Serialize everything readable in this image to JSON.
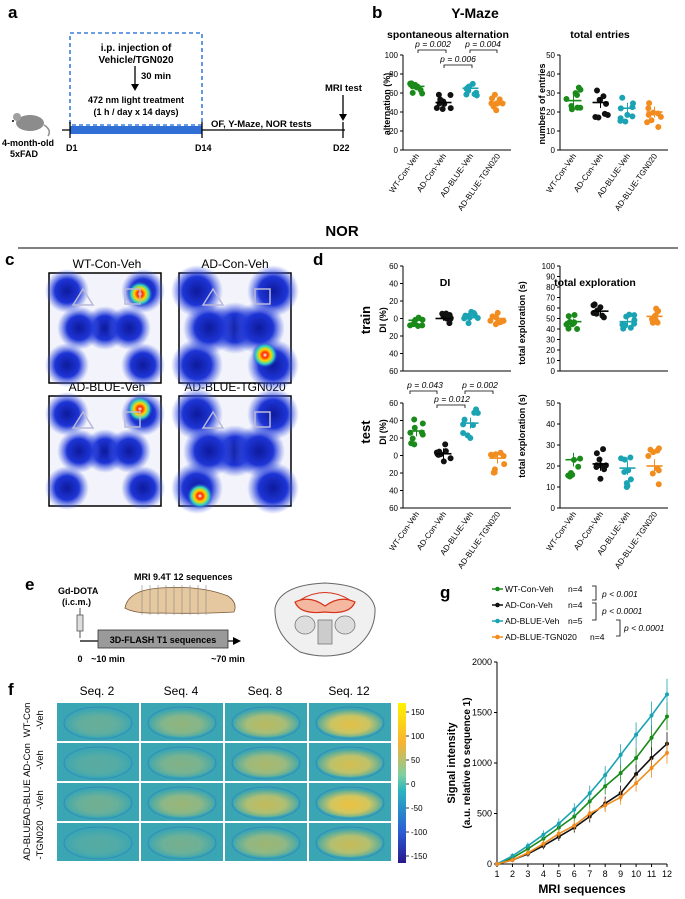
{
  "panel_labels": {
    "a": "a",
    "b": "b",
    "c": "c",
    "d": "d",
    "e": "e",
    "f": "f",
    "g": "g"
  },
  "colors": {
    "wt": "#1a8a1a",
    "ad": "#111111",
    "blue": "#1aa3b3",
    "tgn": "#f28c1e",
    "dash": "#3a7fd9",
    "bar": "#2f6fd6"
  },
  "panel_a": {
    "box_line1": "i.p. injection of",
    "box_line2": "Vehicle/TGN020",
    "wait": "30 min",
    "treat1": "472 nm light treatment",
    "treat2": "(1 h / day x 14 days)",
    "mri": "MRI test",
    "mouse1": "4-month-old",
    "mouse2": "5xFAD",
    "tests": "OF, Y-Maze, NOR tests",
    "d1": "D1",
    "d14": "D14",
    "d22": "D22"
  },
  "panel_b": {
    "title": "Y-Maze",
    "alt_title": "spontaneous alternation",
    "tot_title": "total entries",
    "alt_ylabel": "alternation (%)",
    "tot_ylabel": "numbers of entries",
    "p1": "p = 0.002",
    "p2": "p = 0.006",
    "p3": "p = 0.004"
  },
  "nor_title": "NOR",
  "panel_c": {
    "l1": "WT-Con-Veh",
    "l2": "AD-Con-Veh",
    "l3": "AD-BLUE-Veh",
    "l4": "AD-BLUE-TGN020"
  },
  "panel_d": {
    "di_title": "DI",
    "te_title": "total exploration",
    "train": "train",
    "test": "test",
    "di_ylabel": "DI (%)",
    "te_ylabel": "total exploration (s)",
    "p1": "p = 0.043",
    "p2": "p = 0.002",
    "p3": "p = 0.012"
  },
  "groups": [
    "WT-Con-Veh",
    "AD-Con-Veh",
    "AD-BLUE-Veh",
    "AD-BLUE-TGN020"
  ],
  "panel_e": {
    "agent1": "Gd-DOTA",
    "agent2": "(i.c.m.)",
    "mri": "MRI 9.4T  12 sequences",
    "seq": "3D-FLASH T1 sequences",
    "t0": "0",
    "t1": "~10 min",
    "t2": "~70 min"
  },
  "panel_f": {
    "cols": [
      "Seq. 2",
      "Seq. 4",
      "Seq. 8",
      "Seq. 12"
    ],
    "rows": [
      [
        "WT-Con",
        "-Veh"
      ],
      [
        "AD-Con",
        "-Veh"
      ],
      [
        "AD-BLUE",
        "-Veh"
      ],
      [
        "AD-BLUE",
        "-TGN020"
      ]
    ],
    "cbar": [
      "150",
      "100",
      "50",
      "0",
      "-50",
      "-100",
      "-150"
    ]
  },
  "panel_g": {
    "legend": [
      {
        "name": "WT-Con-Veh",
        "n": "n=4"
      },
      {
        "name": "AD-Con-Veh",
        "n": "n=4"
      },
      {
        "name": "AD-BLUE-Veh",
        "n": "n=5"
      },
      {
        "name": "AD-BLUE-TGN020",
        "n": "n=4"
      }
    ],
    "stats": [
      "p < 0.001",
      "p < 0.0001",
      "p < 0.0001"
    ]
  },
  "chart_data": [
    {
      "type": "scatter",
      "title": "spontaneous alternation",
      "ylabel": "alternation (%)",
      "ylim": [
        0,
        100
      ],
      "yticks": [
        0,
        20,
        40,
        60,
        80,
        100
      ],
      "categories": [
        "WT-Con-Veh",
        "AD-Con-Veh",
        "AD-BLUE-Veh",
        "AD-BLUE-TGN020"
      ],
      "means": [
        67,
        50,
        65,
        50
      ]
    },
    {
      "type": "scatter",
      "title": "total entries",
      "ylabel": "numbers of entries",
      "ylim": [
        0,
        50
      ],
      "yticks": [
        0,
        10,
        20,
        30,
        40,
        50
      ],
      "categories": [
        "WT-Con-Veh",
        "AD-Con-Veh",
        "AD-BLUE-Veh",
        "AD-BLUE-TGN020"
      ],
      "means": [
        26,
        25,
        22,
        20
      ]
    },
    {
      "type": "scatter",
      "title": "DI (train)",
      "ylabel": "DI (%)",
      "ylim": [
        -60,
        60
      ],
      "yticks": [
        60,
        40,
        20,
        0,
        20,
        40,
        60
      ],
      "categories": [
        "WT-Con-Veh",
        "AD-Con-Veh",
        "AD-BLUE-Veh",
        "AD-BLUE-TGN020"
      ],
      "means": [
        -2,
        0,
        1,
        0
      ]
    },
    {
      "type": "scatter",
      "title": "total exploration (train)",
      "ylabel": "total exploration (s)",
      "ylim": [
        0,
        100
      ],
      "yticks": [
        0,
        10,
        20,
        30,
        40,
        50,
        60,
        70,
        80,
        90,
        100
      ],
      "categories": [
        "WT-Con-Veh",
        "AD-Con-Veh",
        "AD-BLUE-Veh",
        "AD-BLUE-TGN020"
      ],
      "means": [
        47,
        57,
        47,
        52
      ]
    },
    {
      "type": "scatter",
      "title": "DI (test)",
      "ylabel": "DI (%)",
      "ylim": [
        -60,
        60
      ],
      "yticks": [
        60,
        40,
        20,
        0,
        20,
        40,
        60
      ],
      "categories": [
        "WT-Con-Veh",
        "AD-Con-Veh",
        "AD-BLUE-Veh",
        "AD-BLUE-TGN020"
      ],
      "means": [
        28,
        2,
        37,
        -3
      ]
    },
    {
      "type": "scatter",
      "title": "total exploration (test)",
      "ylabel": "total exploration (s)",
      "ylim": [
        0,
        50
      ],
      "yticks": [
        0,
        10,
        20,
        30,
        40,
        50
      ],
      "categories": [
        "WT-Con-Veh",
        "AD-Con-Veh",
        "AD-BLUE-Veh",
        "AD-BLUE-TGN020"
      ],
      "means": [
        23,
        21,
        19,
        20
      ]
    },
    {
      "type": "line",
      "title": "",
      "xlabel": "MRI  sequences",
      "ylabel": "Signal intensity (a.u. relative to sequence 1)",
      "x": [
        1,
        2,
        3,
        4,
        5,
        6,
        7,
        8,
        9,
        10,
        11,
        12
      ],
      "ylim": [
        0,
        2000
      ],
      "yticks": [
        0,
        500,
        1000,
        1500,
        2000
      ],
      "series": [
        {
          "name": "WT-Con-Veh",
          "values": [
            0,
            60,
            150,
            250,
            360,
            470,
            620,
            770,
            900,
            1050,
            1250,
            1460
          ]
        },
        {
          "name": "AD-Con-Veh",
          "values": [
            0,
            40,
            100,
            180,
            270,
            360,
            470,
            600,
            700,
            890,
            1050,
            1190
          ]
        },
        {
          "name": "AD-BLUE-Veh",
          "values": [
            0,
            80,
            180,
            290,
            400,
            540,
            700,
            880,
            1080,
            1280,
            1470,
            1680
          ]
        },
        {
          "name": "AD-BLUE-TGN020",
          "values": [
            0,
            40,
            110,
            200,
            300,
            380,
            500,
            580,
            660,
            800,
            950,
            1100
          ]
        }
      ]
    }
  ]
}
